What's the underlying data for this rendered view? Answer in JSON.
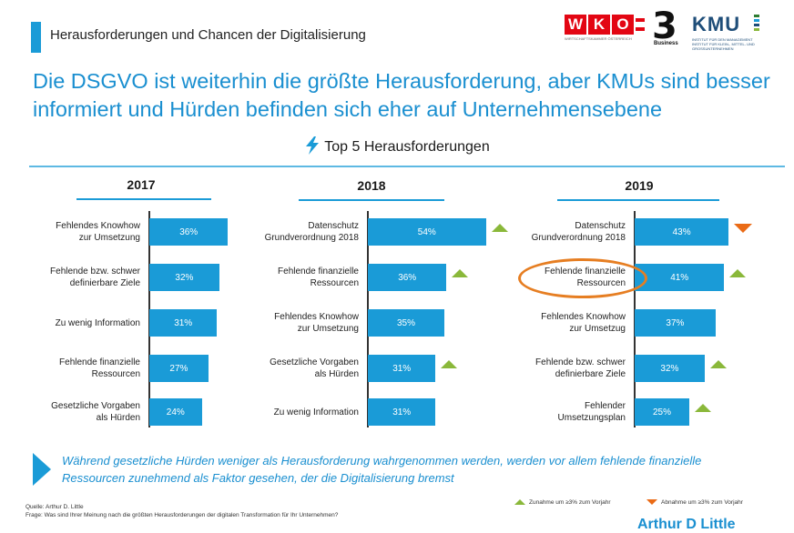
{
  "header": {
    "title": "Herausforderungen und Chancen der Digitalisierung"
  },
  "logos": {
    "wko_letters": [
      "W",
      "K",
      "O"
    ],
    "wko_sub": "WIRTSCHAFTSKAMMER ÖSTERREICH",
    "three": "3",
    "three_sub": "Business",
    "kmu": "KMU",
    "kmu_sub": "INSTITUT FÜR DEN MANAGEMENT INSTITUT FÜR KLEIN-, MITTEL- UND GROSSUNTERNEHMEN"
  },
  "main_title": "Die DSGVO ist weiterhin die größte Herausforderung, aber KMUs sind besser informiert und Hürden befinden sich eher auf Unternehmensebene",
  "subtitle": "Top 5 Herausforderungen",
  "chart_data": [
    {
      "type": "bar",
      "title": "2017",
      "categories": [
        "Fehlendes Knowhow zur Umsetzung",
        "Fehlende bzw. schwer definierbare Ziele",
        "Zu wenig Information",
        "Fehlende finanzielle Ressourcen",
        "Gesetzliche Vorgaben als Hürden"
      ],
      "lines": [
        [
          "Fehlendes Knowhow",
          "zur Umsetzung"
        ],
        [
          "Fehlende bzw. schwer",
          "definierbare Ziele"
        ],
        [
          "Zu wenig Information"
        ],
        [
          "Fehlende finanzielle",
          "Ressourcen"
        ],
        [
          "Gesetzliche Vorgaben",
          "als Hürden"
        ]
      ],
      "values": [
        36,
        32,
        31,
        27,
        24
      ],
      "labels": [
        "36%",
        "32%",
        "31%",
        "27%",
        "24%"
      ],
      "change": [
        "",
        "",
        "",
        "",
        ""
      ]
    },
    {
      "type": "bar",
      "title": "2018",
      "categories": [
        "Datenschutz Grundverordnung 2018",
        "Fehlende finanzielle Ressourcen",
        "Fehlendes Knowhow zur Umsetzung",
        "Gesetzliche Vorgaben als Hürden",
        "Zu wenig Information"
      ],
      "lines": [
        [
          "Datenschutz",
          "Grundverordnung 2018"
        ],
        [
          "Fehlende finanzielle",
          "Ressourcen"
        ],
        [
          "Fehlendes Knowhow",
          "zur Umsetzung"
        ],
        [
          "Gesetzliche Vorgaben",
          "als Hürden"
        ],
        [
          "Zu wenig Information"
        ]
      ],
      "values": [
        54,
        36,
        35,
        31,
        31
      ],
      "labels": [
        "54%",
        "36%",
        "35%",
        "31%",
        "31%"
      ],
      "change": [
        "up",
        "up",
        "",
        "up",
        ""
      ]
    },
    {
      "type": "bar",
      "title": "2019",
      "categories": [
        "Datenschutz Grundverordnung 2018",
        "Fehlende finanzielle Ressourcen",
        "Fehlendes Knowhow zur Umsetzug",
        "Fehlende bzw. schwer definierbare Ziele",
        "Fehlender Umsetzungsplan"
      ],
      "lines": [
        [
          "Datenschutz",
          "Grundverordnung 2018"
        ],
        [
          "Fehlende finanzielle",
          "Ressourcen"
        ],
        [
          "Fehlendes Knowhow",
          "zur Umsetzug"
        ],
        [
          "Fehlende bzw. schwer",
          "definierbare Ziele"
        ],
        [
          "Fehlender",
          "Umsetzungsplan"
        ]
      ],
      "values": [
        43,
        41,
        37,
        32,
        25
      ],
      "labels": [
        "43%",
        "41%",
        "37%",
        "32%",
        "25%"
      ],
      "change": [
        "down",
        "up",
        "",
        "up",
        "up"
      ],
      "highlight_index": 1
    }
  ],
  "note": "Während gesetzliche Hürden weniger als Herausforderung wahrgenommen werden, werden vor allem fehlende finanzielle Ressourcen zunehmend als Faktor gesehen, der die Digitalisierung bremst",
  "source": {
    "line1": "Quelle: Arthur D. Little",
    "line2": "Frage: Was sind Ihrer Meinung nach die größten Herausforderungen der digitalen Transformation für Ihr Unternehmen?"
  },
  "legend": {
    "up": "Zunahme um ≥3% zum Vorjahr",
    "down": "Abnahme um ≥3% zum Vorjahr"
  },
  "footer_logo": "Arthur D Little",
  "colors": {
    "bar": "#1a9bd7",
    "up": "#8ab83a",
    "down": "#ea6b16",
    "highlight": "#e67e22",
    "title": "#1a8fd0"
  }
}
